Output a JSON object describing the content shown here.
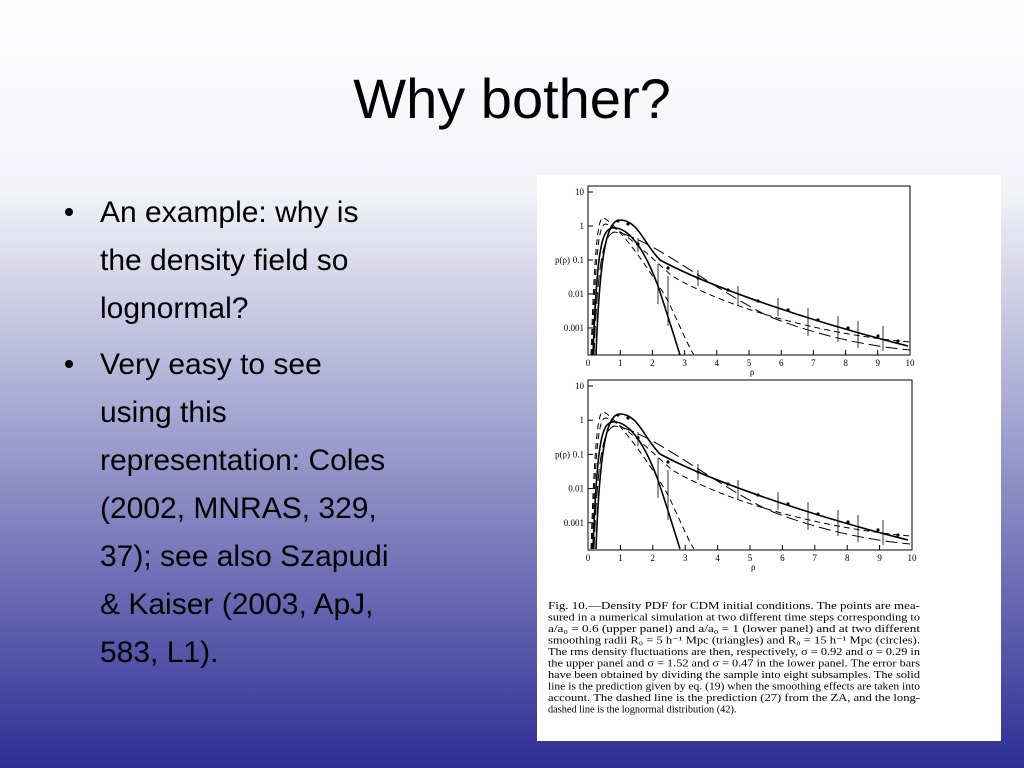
{
  "slide": {
    "title": "Why bother?",
    "bullets": [
      [
        "An example: why is",
        "the density field so",
        "lognormal?"
      ],
      [
        "Very easy to see",
        "using this",
        "representation: Coles",
        "(2002, MNRAS, 329,",
        "37); see also Szapudi",
        "& Kaiser (2003, ApJ,",
        "583, L1)."
      ]
    ]
  },
  "figure": {
    "panels": [
      {
        "ylabel": "p(ρ)",
        "xlabel": "ρ",
        "ylim": [
          0.00016,
          15
        ],
        "yticks": [
          10,
          1,
          0.1,
          0.01,
          0.001
        ],
        "xlim": [
          0,
          10
        ],
        "xticks": [
          0,
          1,
          2,
          3,
          4,
          5,
          6,
          7,
          8,
          9,
          10
        ],
        "log_y": true
      },
      {
        "ylabel": "p(ρ)",
        "xlabel": "ρ",
        "ylim": [
          0.00016,
          15
        ],
        "yticks": [
          10,
          1,
          0.1,
          0.01,
          0.001
        ],
        "xlim": [
          0,
          10
        ],
        "xticks": [
          0,
          1,
          2,
          3,
          4,
          5,
          6,
          7,
          8,
          9,
          10
        ],
        "log_y": true
      }
    ],
    "caption": [
      "Fig. 10.—Density PDF for CDM initial conditions. The points are mea-",
      "sured in a numerical simulation at two different time steps corresponding to",
      "a/a₀ = 0.6 (upper panel) and a/a₀ = 1 (lower panel) and at two different",
      "smoothing radii R₀ = 5 h⁻¹ Mpc (triangles) and R₀ = 15 h⁻¹ Mpc (circles).",
      "The rms density fluctuations are then, respectively, σ = 0.92 and σ = 0.29 in",
      "the upper panel and σ = 1.52 and σ = 0.47 in the lower panel. The error bars",
      "have been obtained by dividing the sample into eight subsamples. The solid",
      "line is the prediction given by eq. (19) when the smoothing effects are taken into",
      "account. The dashed line is the prediction (27) from the ZA, and the long-",
      "dashed line is the lognormal distribution (42)."
    ]
  }
}
